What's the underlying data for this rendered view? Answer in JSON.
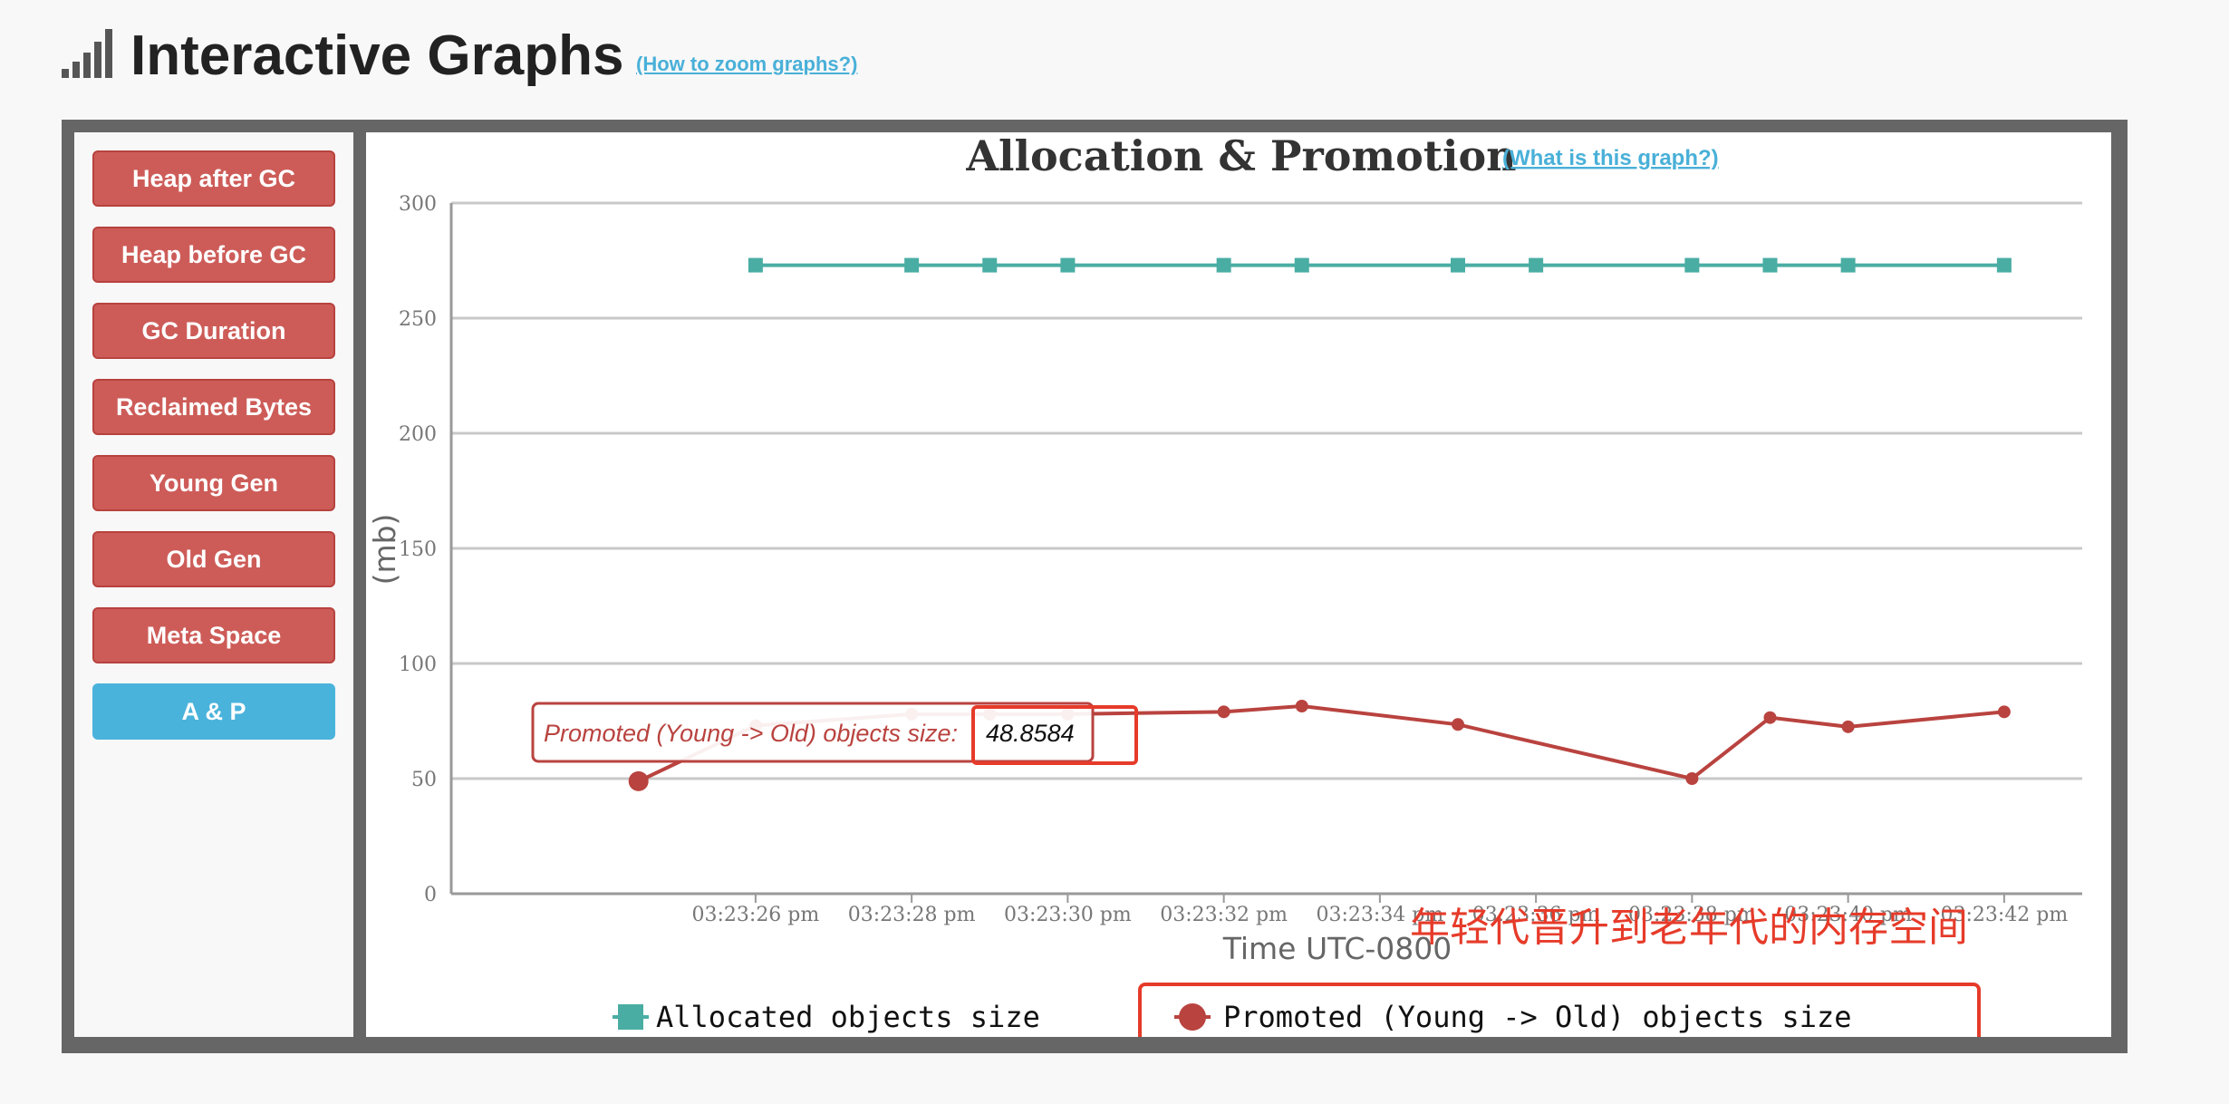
{
  "header": {
    "title": "Interactive Graphs",
    "zoom_link": "(How to zoom graphs?)"
  },
  "sidebar": {
    "buttons": [
      {
        "label": "Heap after GC",
        "active": false
      },
      {
        "label": "Heap before GC",
        "active": false
      },
      {
        "label": "GC Duration",
        "active": false
      },
      {
        "label": "Reclaimed Bytes",
        "active": false
      },
      {
        "label": "Young Gen",
        "active": false
      },
      {
        "label": "Old Gen",
        "active": false
      },
      {
        "label": "Meta Space",
        "active": false
      },
      {
        "label": "A & P",
        "active": true
      }
    ]
  },
  "graph": {
    "help_link": "(What is this graph?)",
    "tooltip": {
      "label": "Promoted (Young -> Old) objects size:",
      "value": "48.8584"
    },
    "annotation": "年轻代晋升到老年代的内存空间"
  },
  "colors": {
    "allocated": "#4aada3",
    "promoted": "#b9433f",
    "highlight": "#e63b2a",
    "button": "#cd5c58",
    "button_active": "#4ab3db"
  },
  "chart_data": {
    "type": "line",
    "title": "Allocation & Promotion",
    "xlabel": "Time UTC-0800",
    "ylabel": "(mb)",
    "ylim": [
      0,
      300
    ],
    "y_ticks": [
      0,
      50,
      100,
      150,
      200,
      250,
      300
    ],
    "x_ticks": [
      "03:23:26 pm",
      "03:23:28 pm",
      "03:23:30 pm",
      "03:23:32 pm",
      "03:23:34 pm",
      "03:23:36 pm",
      "03:23:38 pm",
      "03:23:40 pm",
      "03:23:42 pm"
    ],
    "x_ticks_seconds": [
      26,
      28,
      30,
      32,
      34,
      36,
      38,
      40,
      42
    ],
    "xlim_seconds": [
      22.1,
      43
    ],
    "grid": true,
    "legend_position": "bottom-center",
    "series": [
      {
        "name": "Allocated objects size",
        "marker": "square",
        "color": "#4aada3",
        "x_seconds": [
          26.0,
          28.0,
          29.0,
          30.0,
          32.0,
          33.0,
          35.0,
          36.0,
          38.0,
          39.0,
          40.0,
          42.0
        ],
        "values": [
          273,
          273,
          273,
          273,
          273,
          273,
          273,
          273,
          273,
          273,
          273,
          273
        ]
      },
      {
        "name": "Promoted (Young -> Old) objects size",
        "marker": "circle",
        "color": "#b9433f",
        "x_seconds": [
          24.5,
          26.0,
          28.0,
          29.0,
          30.0,
          32.0,
          33.0,
          35.0,
          38.0,
          39.0,
          40.0,
          42.0
        ],
        "values": [
          48.8584,
          73,
          78,
          78,
          78,
          79,
          81.5,
          73.5,
          50,
          76.5,
          72.5,
          79
        ]
      }
    ]
  }
}
